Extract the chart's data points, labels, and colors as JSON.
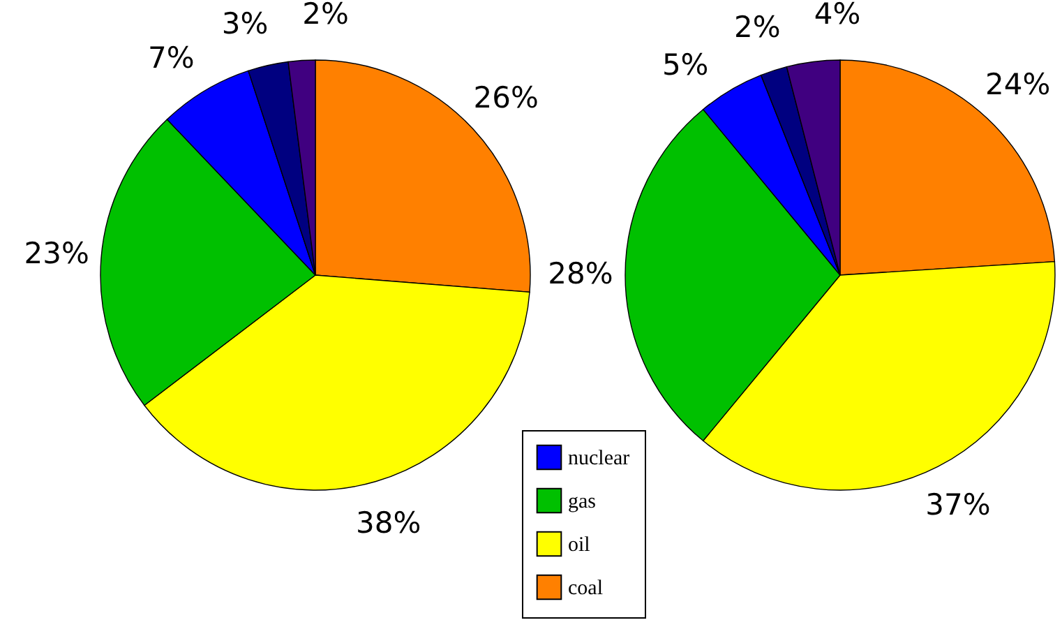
{
  "chart_data": [
    {
      "type": "pie",
      "categories": [
        "coal",
        "oil",
        "gas",
        "nuclear",
        null,
        null
      ],
      "values": [
        26,
        38,
        23,
        7,
        3,
        2
      ],
      "colors": [
        "#ff8000",
        "#ffff00",
        "#00c000",
        "#0000ff",
        "#000080",
        "#400080"
      ],
      "value_labels": [
        "26%",
        "38%",
        "23%",
        "7%",
        "3%",
        "2%"
      ],
      "legend": "bottom"
    },
    {
      "type": "pie",
      "categories": [
        null,
        null,
        null,
        null,
        null,
        null
      ],
      "values": [
        24,
        37,
        28,
        5,
        2,
        4
      ],
      "colors": [
        "#ff8000",
        "#ffff00",
        "#00c000",
        "#0000ff",
        "#000080",
        "#400080"
      ],
      "value_labels": [
        "24%",
        "37%",
        "28%",
        "5%",
        "2%",
        "4%"
      ]
    }
  ]
}
